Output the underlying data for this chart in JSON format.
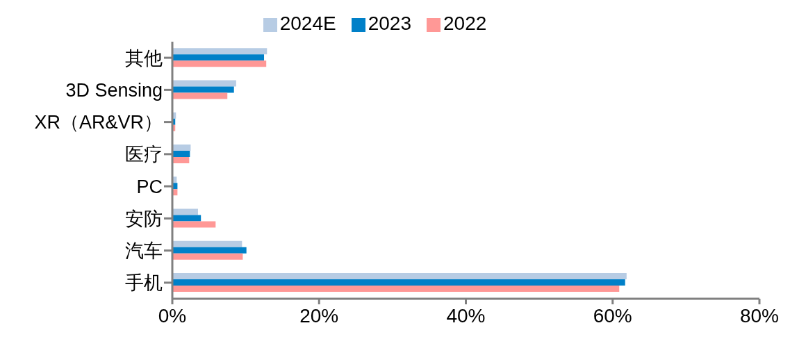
{
  "chart_data": {
    "type": "bar",
    "orientation": "horizontal",
    "categories": [
      "其他",
      "3D Sensing",
      "XR（AR&VR）",
      "医疗",
      "PC",
      "安防",
      "汽车",
      "手机"
    ],
    "series": [
      {
        "name": "2024E",
        "color": "#b7cce4",
        "values": [
          12.9,
          8.7,
          0.5,
          2.5,
          0.6,
          3.5,
          9.5,
          61.9
        ]
      },
      {
        "name": "2023",
        "color": "#0080c8",
        "values": [
          12.5,
          8.4,
          0.4,
          2.4,
          0.7,
          3.9,
          10.1,
          61.7
        ]
      },
      {
        "name": "2022",
        "color": "#ff9896",
        "values": [
          12.8,
          7.5,
          0.4,
          2.3,
          0.7,
          5.9,
          9.6,
          60.9
        ]
      }
    ],
    "xlim": [
      0,
      80
    ],
    "xticks": [
      {
        "value": 0,
        "label": "0%"
      },
      {
        "value": 20,
        "label": "20%"
      },
      {
        "value": 40,
        "label": "40%"
      },
      {
        "value": 60,
        "label": "60%"
      },
      {
        "value": 80,
        "label": "80%"
      }
    ],
    "legend": "top",
    "grid": false
  }
}
